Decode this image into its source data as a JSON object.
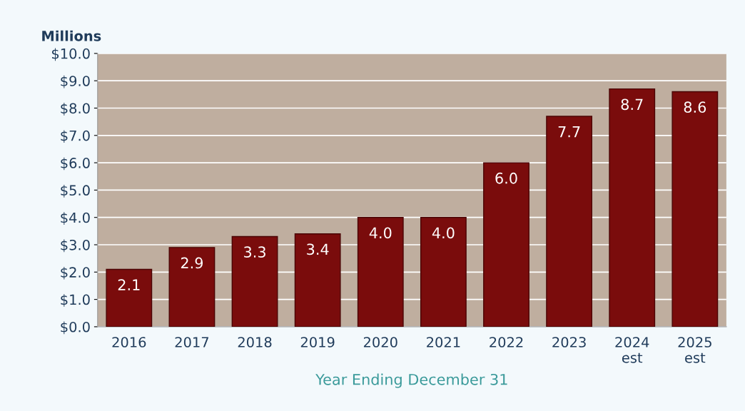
{
  "chart_data": {
    "type": "bar",
    "ylabel": "Millions",
    "xlabel": "Year Ending December 31",
    "categories": [
      "2016",
      "2017",
      "2018",
      "2019",
      "2020",
      "2021",
      "2022",
      "2023",
      "2024\nest",
      "2025\nest"
    ],
    "values": [
      2.1,
      2.9,
      3.3,
      3.4,
      4.0,
      4.0,
      6.0,
      7.7,
      8.7,
      8.6
    ],
    "value_labels": [
      "2.1",
      "2.9",
      "3.3",
      "3.4",
      "4.0",
      "4.0",
      "6.0",
      "7.7",
      "8.7",
      "8.6"
    ],
    "color": "#7a0c0c",
    "ylim": [
      0,
      10
    ],
    "yticks": [
      {
        "value": 0,
        "label": "$0.0"
      },
      {
        "value": 1,
        "label": "$1.0"
      },
      {
        "value": 2,
        "label": "$2.0"
      },
      {
        "value": 3,
        "label": "$3.0"
      },
      {
        "value": 4,
        "label": "$4.0"
      },
      {
        "value": 5,
        "label": "$5.0"
      },
      {
        "value": 6,
        "label": "$6.0"
      },
      {
        "value": 7,
        "label": "$7.0"
      },
      {
        "value": 8,
        "label": "$8.0"
      },
      {
        "value": 9,
        "label": "$9.0"
      },
      {
        "value": 10,
        "label": "$10.0"
      }
    ],
    "grid": "y",
    "legend": false
  }
}
